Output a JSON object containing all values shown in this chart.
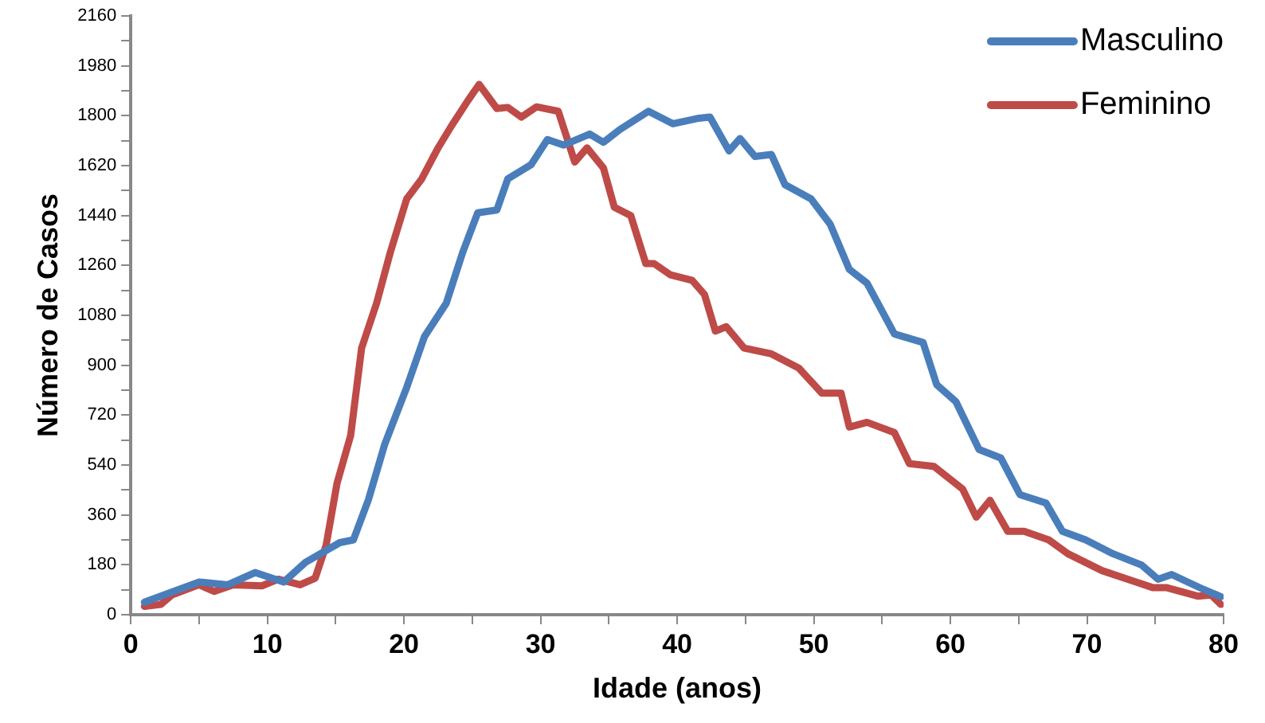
{
  "chart_data": {
    "type": "line",
    "xlabel": "Idade (anos)",
    "ylabel": "Número de Casos",
    "xlim": [
      0,
      80
    ],
    "xticks": [
      0,
      {
        "value": 5,
        "label": null
      },
      10,
      {
        "value": 15,
        "label": null
      },
      20,
      {
        "value": 25,
        "label": null
      },
      30,
      {
        "value": 35,
        "label": null
      },
      40,
      {
        "value": 45,
        "label": null
      },
      50,
      {
        "value": 55,
        "label": null
      },
      60,
      {
        "value": 65,
        "label": null
      },
      70,
      {
        "value": 75,
        "label": null
      },
      80
    ],
    "ylim": [
      0,
      2160
    ],
    "yticks": [
      0,
      {
        "value": 90,
        "label": null
      },
      180,
      {
        "value": 270,
        "label": null
      },
      360,
      {
        "value": 450,
        "label": null
      },
      540,
      {
        "value": 630,
        "label": null
      },
      720,
      {
        "value": 810,
        "label": null
      },
      900,
      {
        "value": 990,
        "label": null
      },
      1080,
      {
        "value": 1170,
        "label": null
      },
      1260,
      {
        "value": 1350,
        "label": null
      },
      1440,
      {
        "value": 1530,
        "label": null
      },
      1620,
      {
        "value": 1710,
        "label": null
      },
      1800,
      {
        "value": 1890,
        "label": null
      },
      1980,
      {
        "value": 2070,
        "label": null
      },
      2160
    ],
    "grid": false,
    "legend": "top right",
    "marker": "none",
    "line_style": "solid",
    "series": [
      {
        "name": "Masculino",
        "color": "#4a7ebb",
        "x": [
          1,
          5,
          7.1,
          9.1,
          11.2,
          12.8,
          15.3,
          16.3,
          17.4,
          18.6,
          20.2,
          21.5,
          23.1,
          24.3,
          25.4,
          26.8,
          27.6,
          29.3,
          30.5,
          31.7,
          33.6,
          34.6,
          35.8,
          37.9,
          39.7,
          41.6,
          42.4,
          43.8,
          44.6,
          45.7,
          46.9,
          47.9,
          49.8,
          51.2,
          52.6,
          53.9,
          55.9,
          58,
          59,
          60.4,
          62.1,
          63.7,
          65.1,
          67,
          68.2,
          69.9,
          71.9,
          74,
          75.2,
          76.2,
          78.5,
          79.8
        ],
        "values": [
          45,
          118,
          108,
          152,
          118,
          189,
          260,
          270,
          415,
          616,
          820,
          1003,
          1124,
          1307,
          1450,
          1460,
          1572,
          1623,
          1714,
          1694,
          1734,
          1704,
          1750,
          1816,
          1771,
          1791,
          1795,
          1673,
          1718,
          1653,
          1660,
          1551,
          1500,
          1409,
          1246,
          1196,
          1013,
          982,
          830,
          769,
          596,
          565,
          433,
          403,
          301,
          270,
          220,
          179,
          128,
          145,
          92,
          65
        ]
      },
      {
        "name": "Feminino",
        "color": "#be4b48",
        "x": [
          1,
          2.2,
          3,
          5,
          6.1,
          7.5,
          9.6,
          10.8,
          12.4,
          13.5,
          14.3,
          15.1,
          16.1,
          16.9,
          18,
          19,
          20.2,
          21.3,
          22.5,
          23.5,
          24.7,
          25.5,
          26.8,
          27.6,
          28.6,
          29.7,
          31.3,
          32.5,
          33.4,
          34.6,
          35.4,
          36.6,
          37.7,
          38.3,
          39.5,
          41.1,
          42,
          42.8,
          43.6,
          44.9,
          46.9,
          48.9,
          50.6,
          52,
          52.6,
          53.9,
          55.9,
          57,
          58.8,
          60.9,
          61.9,
          62.9,
          64.2,
          65.4,
          67.2,
          68.6,
          71.1,
          73.6,
          74.8,
          75.8,
          78.1,
          79.1,
          79.8
        ],
        "values": [
          30,
          37,
          71,
          108,
          84,
          108,
          104,
          128,
          108,
          132,
          250,
          474,
          647,
          962,
          1124,
          1307,
          1500,
          1572,
          1684,
          1765,
          1856,
          1913,
          1826,
          1830,
          1795,
          1832,
          1816,
          1633,
          1684,
          1612,
          1470,
          1440,
          1267,
          1267,
          1226,
          1206,
          1155,
          1023,
          1039,
          962,
          941,
          890,
          799,
          799,
          677,
          694,
          657,
          545,
          535,
          453,
          352,
          413,
          301,
          301,
          270,
          220,
          159,
          118,
          98,
          98,
          67,
          71,
          37
        ]
      }
    ]
  }
}
